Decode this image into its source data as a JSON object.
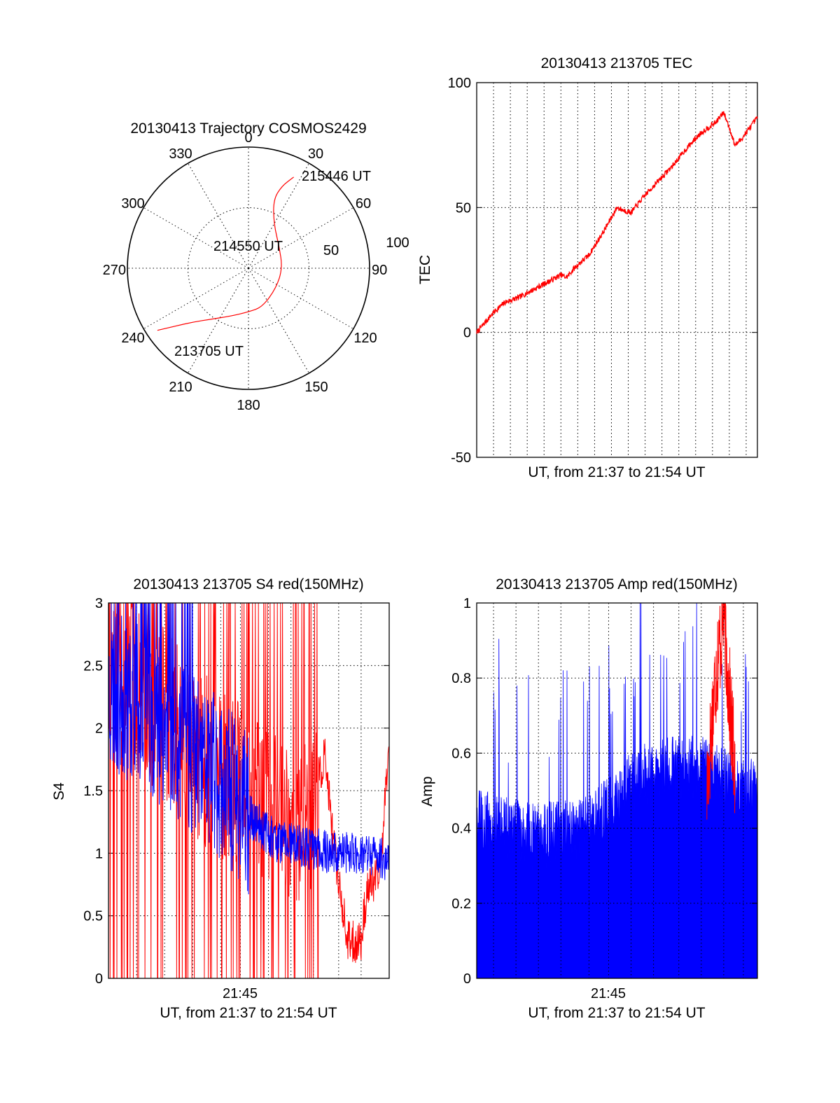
{
  "chart_data": [
    {
      "type": "polar",
      "title": "20130413 Trajectory COSMOS2429",
      "angle_labels": [
        "0",
        "30",
        "60",
        "90",
        "120",
        "150",
        "180",
        "210",
        "240",
        "270",
        "300",
        "330"
      ],
      "radius_labels": [
        "50",
        "100"
      ],
      "rlim": [
        0,
        100
      ],
      "grid": true,
      "series": [
        {
          "color": "#ff0000",
          "points": [
            {
              "az": 235.7,
              "zen": 91
            },
            {
              "az": 232,
              "zen": 78
            },
            {
              "az": 226,
              "zen": 64
            },
            {
              "az": 216,
              "zen": 52
            },
            {
              "az": 200,
              "zen": 42
            },
            {
              "az": 180,
              "zen": 36
            },
            {
              "az": 160,
              "zen": 34
            },
            {
              "az": 125,
              "zen": 28
            },
            {
              "az": 90,
              "zen": 28
            },
            {
              "az": 55,
              "zen": 31
            },
            {
              "az": 30,
              "zen": 42
            },
            {
              "az": 20,
              "zen": 60
            },
            {
              "az": 22,
              "zen": 73
            },
            {
              "az": 26.4,
              "zen": 84
            }
          ]
        }
      ],
      "annotations": [
        "215446 UT",
        "214550 UT",
        "213705 UT"
      ]
    },
    {
      "type": "line",
      "title": "20130413 213705 TEC",
      "xlabel": "UT, from 21:37 to 21:54 UT",
      "ylabel": "TEC",
      "xlim": [
        0,
        1
      ],
      "ylim": [
        -50,
        100
      ],
      "y_ticks": [
        "-50",
        "0",
        "50",
        "100"
      ],
      "x_grid_fractions": [
        0.06,
        0.12,
        0.18,
        0.24,
        0.3,
        0.36,
        0.42,
        0.48,
        0.54,
        0.6,
        0.66,
        0.72,
        0.78,
        0.84,
        0.9,
        0.96
      ],
      "grid": true,
      "series": [
        {
          "color": "#ff0000",
          "x": [
            0,
            0.03,
            0.06,
            0.1,
            0.15,
            0.2,
            0.25,
            0.3,
            0.32,
            0.35,
            0.4,
            0.45,
            0.48,
            0.5,
            0.52,
            0.55,
            0.6,
            0.65,
            0.7,
            0.75,
            0.8,
            0.85,
            0.88,
            0.9,
            0.92,
            0.94,
            0.96,
            0.98,
            1.0
          ],
          "values": [
            0,
            4,
            8,
            12,
            14,
            17,
            20,
            23,
            22,
            26,
            31,
            40,
            46,
            50,
            49,
            48,
            55,
            61,
            67,
            74,
            80,
            84,
            88,
            82,
            75,
            77,
            80,
            83,
            86
          ]
        }
      ]
    },
    {
      "type": "line",
      "title": "20130413 213705 S4 red(150MHz)",
      "xlabel": "UT, from 21:37 to 21:54 UT",
      "ylabel": "S4",
      "xlim": [
        0,
        1
      ],
      "ylim": [
        0,
        3
      ],
      "x_tick_labels": [
        "21:45"
      ],
      "y_ticks": [
        "0",
        "0.5",
        "1",
        "1.5",
        "2",
        "2.5",
        "3"
      ],
      "grid": true,
      "series": [
        {
          "color": "#ff0000",
          "x": [
            0,
            0.08,
            0.16,
            0.24,
            0.32,
            0.4,
            0.48,
            0.56,
            0.64,
            0.72,
            0.77,
            0.8,
            0.82,
            0.85,
            0.86,
            0.9,
            0.92,
            0.96,
            0.98,
            1.0
          ],
          "values": [
            2.6,
            2.4,
            2.2,
            2.0,
            1.8,
            1.6,
            1.5,
            1.4,
            1.3,
            1.2,
            1.8,
            1.1,
            0.8,
            0.3,
            0.28,
            0.3,
            0.7,
            0.8,
            1.2,
            2.0
          ]
        },
        {
          "color": "#0000ff",
          "x": [
            0,
            0.1,
            0.2,
            0.3,
            0.4,
            0.45,
            0.5,
            0.55,
            0.6,
            0.7,
            0.8,
            0.9,
            1.0
          ],
          "values": [
            2.3,
            2.2,
            2.0,
            1.8,
            1.6,
            1.45,
            1.3,
            1.2,
            1.1,
            1.05,
            1.0,
            1.0,
            0.95
          ]
        }
      ]
    },
    {
      "type": "area",
      "title": "20130413 213705 Amp red(150MHz)",
      "xlabel": "UT, from 21:37 to 21:54 UT",
      "ylabel": "Amp",
      "xlim": [
        0,
        1
      ],
      "ylim": [
        0,
        1
      ],
      "x_tick_labels": [
        "21:45"
      ],
      "y_ticks": [
        "0",
        "0.2",
        "0.4",
        "0.6",
        "0.8",
        "1"
      ],
      "grid": true,
      "series": [
        {
          "color": "#0000ff",
          "x": [
            0,
            0.1,
            0.2,
            0.3,
            0.4,
            0.45,
            0.5,
            0.55,
            0.6,
            0.7,
            0.8,
            0.85,
            0.9,
            0.95,
            1.0
          ],
          "values": [
            0.38,
            0.36,
            0.34,
            0.35,
            0.36,
            0.4,
            0.42,
            0.48,
            0.5,
            0.52,
            0.52,
            0.5,
            0.48,
            0.47,
            0.46
          ]
        },
        {
          "color": "#ff0000",
          "x": [
            0.82,
            0.85,
            0.88,
            0.9,
            0.92
          ],
          "values": [
            0.5,
            0.8,
            0.97,
            0.75,
            0.55
          ]
        }
      ]
    }
  ]
}
